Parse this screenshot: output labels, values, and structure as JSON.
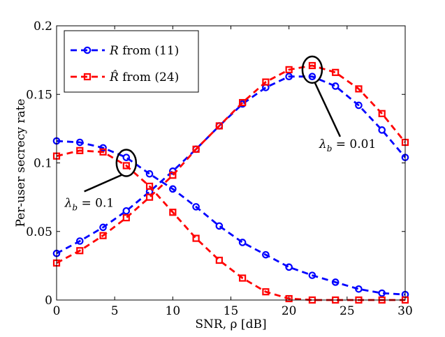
{
  "chart_data": {
    "type": "line",
    "title": "",
    "xlabel": "SNR, ρ [dB]",
    "ylabel": "Per-user secrecy rate",
    "xlim": [
      0,
      30
    ],
    "ylim": [
      0,
      0.2
    ],
    "xticks": [
      0,
      5,
      10,
      15,
      20,
      25,
      30
    ],
    "yticks": [
      0,
      0.05,
      0.1,
      0.15,
      0.2
    ],
    "xtick_labels": [
      "0",
      "5",
      "10",
      "15",
      "20",
      "25",
      "30"
    ],
    "ytick_labels": [
      "0",
      "0.05",
      "0.1",
      "0.15",
      "0.2"
    ],
    "legend_position": "top-left",
    "series": [
      {
        "name": "R from (11)",
        "legend_symbol": "R",
        "legend_suffix": " from (11)",
        "color": "#0000ff",
        "marker": "circle",
        "x": [
          0,
          2,
          4,
          6,
          8,
          10,
          12,
          14,
          16,
          18,
          20,
          22,
          24,
          26,
          28,
          30
        ],
        "lambda_01": [
          0.116,
          0.115,
          0.111,
          0.104,
          0.092,
          0.081,
          0.068,
          0.054,
          0.042,
          0.033,
          0.024,
          0.018,
          0.013,
          0.008,
          0.005,
          0.004
        ],
        "lambda_001": [
          0.034,
          0.043,
          0.053,
          0.065,
          0.079,
          0.094,
          0.11,
          0.127,
          0.143,
          0.155,
          0.163,
          0.163,
          0.156,
          0.142,
          0.124,
          0.104
        ]
      },
      {
        "name": "R̂ from (24)",
        "legend_symbol": "R̂",
        "legend_suffix": " from (24)",
        "color": "#ff0000",
        "marker": "square",
        "x": [
          0,
          2,
          4,
          6,
          8,
          10,
          12,
          14,
          16,
          18,
          20,
          22,
          24,
          26,
          28,
          30
        ],
        "lambda_01": [
          0.105,
          0.109,
          0.108,
          0.098,
          0.083,
          0.064,
          0.045,
          0.029,
          0.016,
          0.006,
          0.001,
          0.0,
          0.0,
          0.0,
          0.0,
          0.0
        ],
        "lambda_001": [
          0.027,
          0.036,
          0.047,
          0.06,
          0.075,
          0.091,
          0.11,
          0.127,
          0.144,
          0.159,
          0.168,
          0.171,
          0.166,
          0.154,
          0.136,
          0.115
        ]
      }
    ],
    "annotations": [
      {
        "text": "λb = 0.1",
        "symbol": "λ",
        "subscript": "b",
        "value_text": " = 0.1",
        "ellipse_x": 6,
        "ellipse_y": 0.1,
        "label_x": 0.7,
        "label_y": 0.068
      },
      {
        "text": "λb = 0.01",
        "symbol": "λ",
        "subscript": "b",
        "value_text": " = 0.01",
        "ellipse_x": 22,
        "ellipse_y": 0.168,
        "label_x": 22.6,
        "label_y": 0.111
      }
    ]
  }
}
